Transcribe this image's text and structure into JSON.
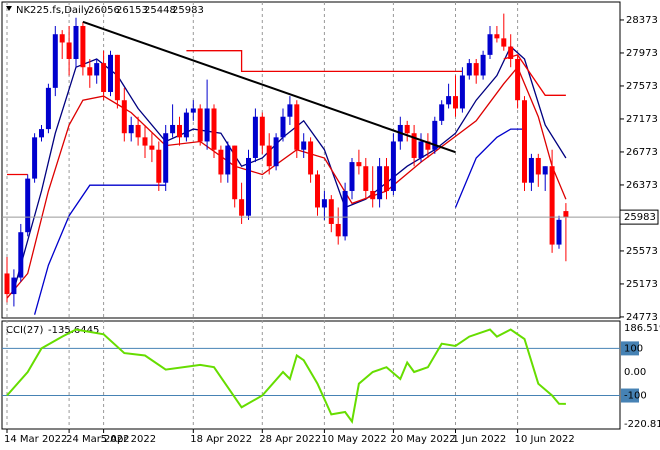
{
  "chart_data": [
    {
      "type": "candlestick",
      "title": "NK225.fs,Daily",
      "categories": [
        "14 Mar 2022",
        null,
        null,
        null,
        null,
        null,
        null,
        null,
        null,
        "24 Mar 2022",
        null,
        null,
        null,
        null,
        "5 Apr 2022",
        null,
        null,
        null,
        null,
        null,
        null,
        null,
        null,
        null,
        null,
        null,
        null,
        "18 Apr 2022",
        null,
        null,
        null,
        null,
        null,
        null,
        null,
        null,
        null,
        "28 Apr 2022",
        null,
        null,
        null,
        null,
        null,
        null,
        null,
        null,
        "10 May 2022",
        null,
        null,
        null,
        null,
        null,
        null,
        null,
        null,
        null,
        "20 May 2022",
        null,
        null,
        null,
        null,
        null,
        null,
        null,
        null,
        "1 Jun 2022",
        null,
        null,
        null,
        null,
        null,
        null,
        null,
        null,
        "10 Jun 2022",
        null,
        null,
        null,
        null,
        null,
        null,
        null
      ],
      "open": [
        25300,
        25050,
        25250,
        25800,
        26450,
        26950,
        27050,
        27550,
        28200,
        28100,
        27900,
        28300,
        27800,
        27700,
        27850,
        27500,
        27950,
        27400,
        27000,
        27100,
        26950,
        26850,
        26800,
        26400,
        27000,
        27100,
        26950,
        27250,
        27300,
        26900,
        27300,
        26800,
        26500,
        26850,
        26200,
        26000,
        26700,
        27200,
        26850,
        26600,
        26950,
        27200,
        27350,
        26800,
        26900,
        26500,
        26100,
        26200,
        25900,
        25750,
        26300,
        26650,
        26600,
        26300,
        26200,
        26600,
        26300,
        26900,
        27100,
        27000,
        26700,
        26900,
        26800,
        27150,
        27350,
        27450,
        27300,
        27700,
        27850,
        27700,
        27950,
        28200,
        28150,
        28050,
        27900,
        27400,
        26400,
        26700,
        26500,
        26600,
        25650,
        26056
      ],
      "high": [
        25500,
        25350,
        25900,
        26500,
        27000,
        27100,
        27600,
        28300,
        28250,
        28300,
        28400,
        28350,
        27900,
        27900,
        28000,
        28000,
        27950,
        27550,
        27200,
        27200,
        27100,
        27000,
        26900,
        27100,
        27350,
        27200,
        27300,
        27400,
        27350,
        27650,
        27350,
        26850,
        26900,
        26850,
        26400,
        26800,
        27300,
        27250,
        27000,
        27000,
        27300,
        27450,
        27400,
        27000,
        26950,
        26550,
        26300,
        26250,
        26100,
        26400,
        26700,
        26800,
        26700,
        26600,
        26700,
        26700,
        27000,
        27200,
        27150,
        27100,
        27000,
        27000,
        27200,
        27400,
        27600,
        27700,
        27800,
        27900,
        27900,
        28000,
        28300,
        28300,
        28450,
        28200,
        27950,
        27450,
        26750,
        26750,
        26600,
        26800,
        26000,
        26153
      ],
      "low": [
        24950,
        24900,
        25200,
        25750,
        26400,
        26900,
        27000,
        27450,
        27900,
        27700,
        27800,
        27700,
        27550,
        27600,
        27400,
        27450,
        27300,
        26900,
        26900,
        26850,
        26700,
        26650,
        26300,
        26300,
        26950,
        26850,
        26900,
        27150,
        26850,
        26800,
        26700,
        26400,
        26400,
        26100,
        25900,
        25950,
        26650,
        26750,
        26500,
        26550,
        26900,
        27100,
        26700,
        26700,
        26400,
        26000,
        25950,
        25800,
        25650,
        25700,
        26200,
        26500,
        26200,
        26100,
        26100,
        26200,
        26250,
        26800,
        26900,
        26600,
        26650,
        26700,
        26750,
        27100,
        27300,
        27200,
        27250,
        27650,
        27600,
        27650,
        27900,
        28100,
        28000,
        27800,
        27300,
        26300,
        26300,
        26350,
        26300,
        25550,
        25600,
        25448
      ],
      "close": [
        25050,
        25250,
        25800,
        26450,
        26950,
        27050,
        27550,
        28200,
        28100,
        27900,
        28300,
        27800,
        27700,
        27850,
        27500,
        27950,
        27400,
        27000,
        27100,
        26950,
        26850,
        26800,
        26400,
        27000,
        27100,
        26950,
        27250,
        27300,
        26900,
        27300,
        26800,
        26500,
        26850,
        26200,
        26000,
        26700,
        27200,
        26850,
        26600,
        26950,
        27200,
        27350,
        26800,
        26900,
        26500,
        26100,
        26200,
        25900,
        25750,
        26300,
        26650,
        26600,
        26300,
        26200,
        26600,
        26300,
        26900,
        27100,
        27000,
        26700,
        26900,
        26800,
        27150,
        27350,
        27450,
        27300,
        27700,
        27850,
        27700,
        27950,
        28200,
        28150,
        28050,
        27900,
        27400,
        26400,
        26700,
        26500,
        26600,
        25650,
        25950,
        25983
      ],
      "up_color": "#0000cd",
      "down_color": "#ff0000",
      "ylim": [
        24760,
        28615
      ],
      "yticks": [
        24773,
        25173,
        25573,
        25973,
        26373,
        26773,
        27173,
        27573,
        27973,
        28373
      ],
      "lines": [
        {
          "color": "#000080",
          "x": [
            1,
            3,
            5,
            7,
            10,
            13,
            16,
            19,
            23,
            27,
            31,
            34,
            37,
            40,
            43,
            46,
            49,
            52,
            55,
            58,
            62,
            65,
            68,
            71,
            73,
            75,
            78,
            81
          ],
          "values": [
            25100,
            25700,
            26300,
            27000,
            27800,
            27900,
            27700,
            27300,
            26900,
            27050,
            27000,
            26600,
            26700,
            26950,
            27150,
            26800,
            26100,
            26200,
            26400,
            26600,
            26800,
            27000,
            27400,
            27700,
            28050,
            27900,
            27100,
            26700
          ]
        },
        {
          "color": "#dd0000",
          "x": [
            0,
            3,
            6,
            9,
            11,
            14,
            18,
            23,
            28,
            33,
            37,
            42,
            46,
            50,
            55,
            60,
            64,
            68,
            72,
            74,
            77,
            79,
            81
          ],
          "values": [
            25000,
            25300,
            26300,
            27100,
            27400,
            27450,
            27250,
            26850,
            26900,
            26600,
            26500,
            26800,
            26700,
            26150,
            26300,
            26650,
            26900,
            27150,
            27600,
            27800,
            27200,
            26600,
            26200
          ]
        },
        {
          "color": "#ee0000",
          "x": [
            0,
            3,
            4,
            26,
            34,
            34,
            66,
            67,
            72,
            74,
            78,
            81
          ],
          "values": [
            26500,
            26500,
            null,
            28000,
            28000,
            27750,
            27750,
            null,
            27900,
            27950,
            27460,
            27460
          ]
        },
        {
          "color": "#0000cc",
          "x": [
            4,
            6,
            9,
            12,
            23,
            24,
            65,
            68,
            71,
            73,
            75
          ],
          "values": [
            24800,
            25400,
            26000,
            26370,
            26370,
            null,
            26100,
            26700,
            26950,
            27050,
            27050
          ]
        }
      ],
      "trendline": {
        "color": "#000000",
        "x": [
          11,
          65
        ],
        "values": [
          28350,
          26770
        ]
      }
    },
    {
      "type": "line",
      "title": "CCI(27)",
      "color": "#66dd00",
      "x": [
        0,
        3,
        5,
        8,
        10,
        14,
        17,
        20,
        23,
        28,
        30,
        34,
        37,
        40,
        41,
        42,
        43,
        45,
        47,
        49,
        50,
        51,
        53,
        55,
        57,
        58,
        59,
        61,
        63,
        65,
        67,
        70,
        71,
        73,
        75,
        77,
        79,
        80,
        81
      ],
      "values": [
        -100,
        0,
        100,
        150,
        180,
        160,
        80,
        70,
        10,
        30,
        20,
        -150,
        -100,
        0,
        -30,
        70,
        50,
        -50,
        -180,
        -170,
        -210,
        -50,
        0,
        20,
        -30,
        40,
        0,
        20,
        120,
        110,
        150,
        180,
        150,
        180,
        140,
        -50,
        -100,
        -135,
        -135.6445
      ],
      "ylim": [
        -220.811,
        186.5198
      ],
      "yticks": [
        100,
        {
          "value": 0,
          "label": "0.00"
        },
        -100
      ],
      "level_color": "#4682b4"
    }
  ]
}
